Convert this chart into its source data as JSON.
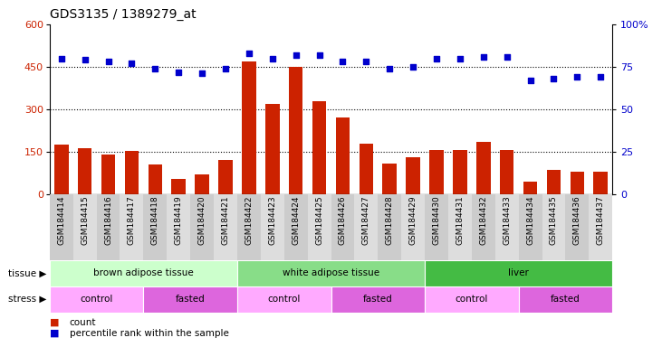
{
  "title": "GDS3135 / 1389279_at",
  "samples": [
    "GSM184414",
    "GSM184415",
    "GSM184416",
    "GSM184417",
    "GSM184418",
    "GSM184419",
    "GSM184420",
    "GSM184421",
    "GSM184422",
    "GSM184423",
    "GSM184424",
    "GSM184425",
    "GSM184426",
    "GSM184427",
    "GSM184428",
    "GSM184429",
    "GSM184430",
    "GSM184431",
    "GSM184432",
    "GSM184433",
    "GSM184434",
    "GSM184435",
    "GSM184436",
    "GSM184437"
  ],
  "counts": [
    175,
    162,
    140,
    152,
    105,
    55,
    70,
    120,
    470,
    320,
    450,
    330,
    270,
    180,
    110,
    130,
    155,
    155,
    185,
    155,
    45,
    85,
    80,
    80
  ],
  "percentile": [
    80,
    79,
    78,
    77,
    74,
    72,
    71,
    74,
    83,
    80,
    82,
    82,
    78,
    78,
    74,
    75,
    80,
    80,
    81,
    81,
    67,
    68,
    69,
    69
  ],
  "tissue_groups": [
    {
      "label": "brown adipose tissue",
      "start": 0,
      "end": 7,
      "color": "#ccffcc"
    },
    {
      "label": "white adipose tissue",
      "start": 8,
      "end": 15,
      "color": "#88dd88"
    },
    {
      "label": "liver",
      "start": 16,
      "end": 23,
      "color": "#44bb44"
    }
  ],
  "stress_groups": [
    {
      "label": "control",
      "start": 0,
      "end": 3,
      "color": "#ffaaff"
    },
    {
      "label": "fasted",
      "start": 4,
      "end": 7,
      "color": "#dd66dd"
    },
    {
      "label": "control",
      "start": 8,
      "end": 11,
      "color": "#ffaaff"
    },
    {
      "label": "fasted",
      "start": 12,
      "end": 15,
      "color": "#dd66dd"
    },
    {
      "label": "control",
      "start": 16,
      "end": 19,
      "color": "#ffaaff"
    },
    {
      "label": "fasted",
      "start": 20,
      "end": 23,
      "color": "#dd66dd"
    }
  ],
  "ylim_left": [
    0,
    600
  ],
  "ylim_right": [
    0,
    100
  ],
  "yticks_left": [
    0,
    150,
    300,
    450,
    600
  ],
  "yticks_right": [
    0,
    25,
    50,
    75,
    100
  ],
  "bar_color": "#cc2200",
  "dot_color": "#0000cc",
  "bg_color": "#ffffff",
  "title_fontsize": 10,
  "tick_fontsize": 6.5,
  "label_fontsize": 7.5
}
